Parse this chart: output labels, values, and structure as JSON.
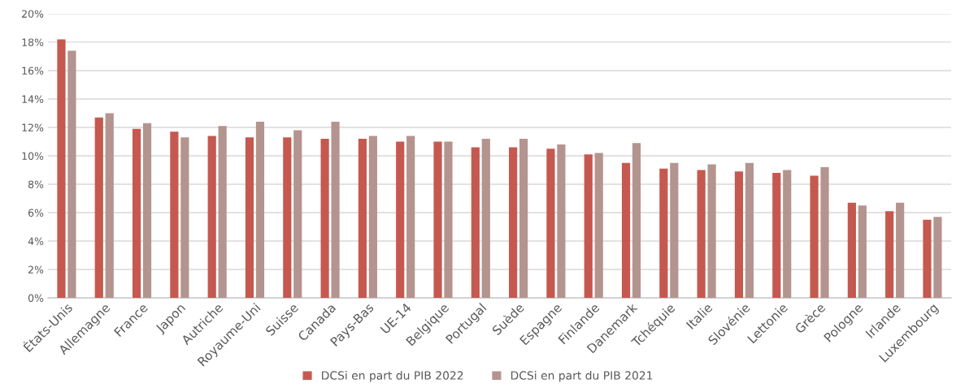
{
  "chart_data": {
    "type": "bar",
    "categories": [
      "États-Unis",
      "Allemagne",
      "France",
      "Japon",
      "Autriche",
      "Royaume-Uni",
      "Suisse",
      "Canada",
      "Pays-Bas",
      "UE-14",
      "Belgique",
      "Portugal",
      "Suède",
      "Espagne",
      "Finlande",
      "Danemark",
      "Tchéquie",
      "Italie",
      "Slovénie",
      "Lettonie",
      "Grèce",
      "Pologne",
      "Irlande",
      "Luxembourg"
    ],
    "series": [
      {
        "name": "DCSi en part du PIB 2022",
        "color": "#c5594f",
        "values": [
          18.2,
          12.7,
          11.9,
          11.7,
          11.4,
          11.3,
          11.3,
          11.2,
          11.2,
          11.0,
          11.0,
          10.6,
          10.6,
          10.5,
          10.1,
          9.5,
          9.1,
          9.0,
          8.9,
          8.8,
          8.6,
          6.7,
          6.1,
          5.5
        ]
      },
      {
        "name": "DCSi en part du PIB 2021",
        "color": "#b4948f",
        "values": [
          17.4,
          13.0,
          12.3,
          11.3,
          12.1,
          12.4,
          11.8,
          12.4,
          11.4,
          11.4,
          11.0,
          11.2,
          11.2,
          10.8,
          10.2,
          10.9,
          9.5,
          9.4,
          9.5,
          9.0,
          9.2,
          6.5,
          6.7,
          5.7
        ]
      }
    ],
    "ylim": [
      0,
      20
    ],
    "yticks": [
      {
        "value": 0,
        "label": "0%"
      },
      {
        "value": 2,
        "label": "2%"
      },
      {
        "value": 4,
        "label": "4%"
      },
      {
        "value": 6,
        "label": "6%"
      },
      {
        "value": 8,
        "label": "8%"
      },
      {
        "value": 10,
        "label": "10%"
      },
      {
        "value": 12,
        "label": "12%"
      },
      {
        "value": 14,
        "label": "14%"
      },
      {
        "value": 16,
        "label": "16%"
      },
      {
        "value": 18,
        "label": "18%"
      },
      {
        "value": 20,
        "label": "20%"
      }
    ],
    "grid": "y",
    "legend": "bottom"
  }
}
